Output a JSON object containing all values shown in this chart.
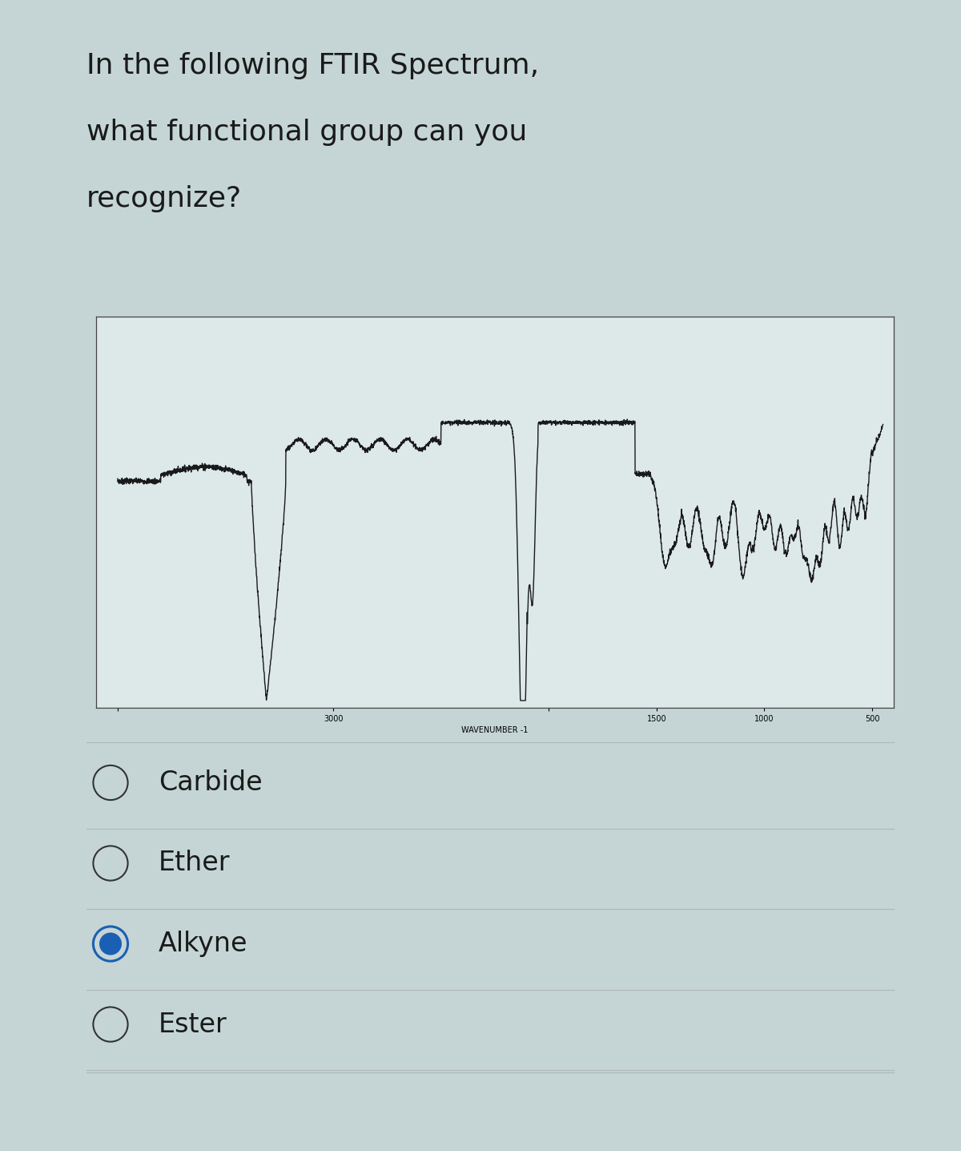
{
  "title_lines": [
    "In the following FTIR Spectrum,",
    "what functional group can you",
    "recognize?"
  ],
  "title_fontsize": 26,
  "background_color": "#c5d5d5",
  "chart_bg": "#dde8e8",
  "options": [
    "Carbide",
    "Ether",
    "Alkyne",
    "Ester"
  ],
  "selected_index": 2,
  "option_fontsize": 24,
  "radio_unselected_color": "#333333",
  "radio_selected_outer": "#1a5fb4",
  "radio_selected_inner": "#1a5fb4",
  "wavenumber_label": "WAVENUMBER -1",
  "separator_color": "#b0b8b8",
  "text_color": "#1a1a1a"
}
